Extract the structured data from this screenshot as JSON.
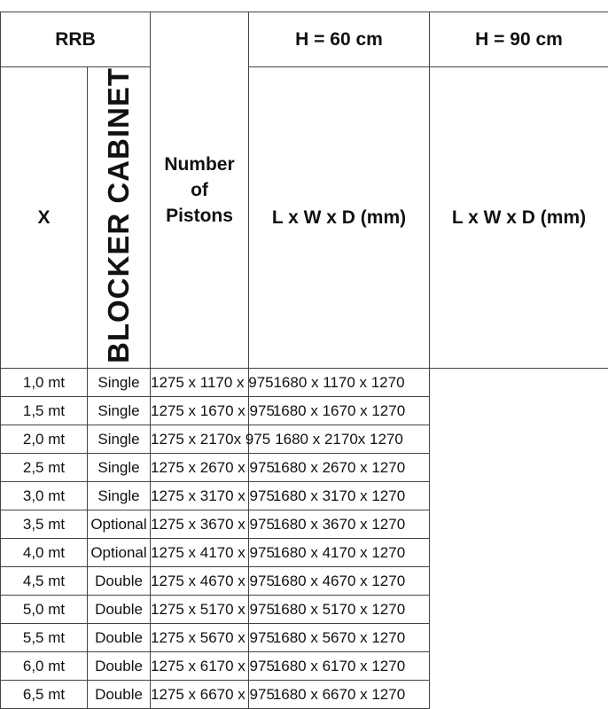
{
  "header": {
    "rrb": "RRB",
    "x": "X",
    "pistons": [
      "Number",
      "of",
      "Pistons"
    ],
    "h60": "H = 60 cm",
    "h90": "H = 90 cm",
    "dims60": "L x W x D (mm)",
    "dims90": "L x W x D (mm)"
  },
  "vertical_label": "BLOCKER CABINET",
  "rows": [
    {
      "x": "1,0 mt",
      "pistons": "Single",
      "h60": "1275 x 1170 x 975",
      "h90": "1680 x 1170 x 1270"
    },
    {
      "x": "1,5 mt",
      "pistons": "Single",
      "h60": "1275 x 1670 x 975",
      "h90": "1680 x 1670 x 1270"
    },
    {
      "x": "2,0 mt",
      "pistons": "Single",
      "h60": "1275 x 2170x 975",
      "h90": "1680 x 2170x 1270"
    },
    {
      "x": "2,5 mt",
      "pistons": "Single",
      "h60": "1275 x 2670 x 975",
      "h90": "1680 x 2670 x 1270"
    },
    {
      "x": "3,0 mt",
      "pistons": "Single",
      "h60": "1275 x 3170 x 975",
      "h90": "1680 x 3170 x 1270"
    },
    {
      "x": "3,5 mt",
      "pistons": "Optional",
      "h60": "1275 x 3670 x 975",
      "h90": "1680 x 3670 x 1270"
    },
    {
      "x": "4,0 mt",
      "pistons": "Optional",
      "h60": "1275 x 4170 x 975",
      "h90": "1680 x 4170 x 1270"
    },
    {
      "x": "4,5 mt",
      "pistons": "Double",
      "h60": "1275 x 4670 x 975",
      "h90": "1680 x 4670 x 1270"
    },
    {
      "x": "5,0 mt",
      "pistons": "Double",
      "h60": "1275 x 5170 x 975",
      "h90": "1680 x 5170 x 1270"
    },
    {
      "x": "5,5 mt",
      "pistons": "Double",
      "h60": "1275 x 5670 x 975",
      "h90": "1680 x 5670 x 1270"
    },
    {
      "x": "6,0 mt",
      "pistons": "Double",
      "h60": "1275 x 6170 x 975",
      "h90": "1680 x 6170 x 1270"
    },
    {
      "x": "6,5 mt",
      "pistons": "Double",
      "h60": "1275 x 6670 x 975",
      "h90": "1680 x 6670 x 1270"
    }
  ]
}
